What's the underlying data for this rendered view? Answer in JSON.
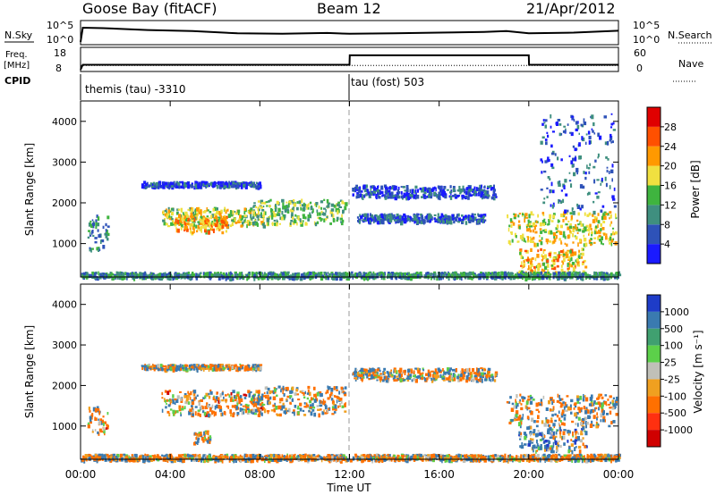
{
  "header": {
    "station": "Goose Bay (fitACF)",
    "beam": "Beam 12",
    "date": "21/Apr/2012"
  },
  "noise_panel": {
    "left_label": "N.Sky",
    "right_label": "N.Search",
    "left_ticks": [
      "10^5",
      "10^0"
    ],
    "right_ticks": [
      "10^5",
      "10^0"
    ]
  },
  "freq_panel": {
    "left_label": "Freq.",
    "left_units": "[MHz]",
    "right_label": "Nave",
    "left_ticks": [
      "18",
      "8"
    ],
    "right_ticks": [
      "60",
      "0"
    ]
  },
  "cpid_panel": {
    "label": "CPID",
    "entries": [
      {
        "text": "themis (tau) -3310",
        "start_hour": 0
      },
      {
        "text": "tau (fost) 503",
        "start_hour": 12
      }
    ]
  },
  "time_axis": {
    "label": "Time UT",
    "ticks": [
      "00:00",
      "04:00",
      "08:00",
      "12:00",
      "16:00",
      "20:00",
      "00:00"
    ]
  },
  "range_axis": {
    "label": "Slant Range [km]",
    "ticks": [
      "1000",
      "2000",
      "3000",
      "4000"
    ]
  },
  "power_scale": {
    "title": "Power [dB]",
    "labels": [
      "4",
      "8",
      "12",
      "16",
      "20",
      "24",
      "28"
    ],
    "colors": [
      "#1a1aff",
      "#2e52b8",
      "#3f8f7f",
      "#3fb43f",
      "#f0e040",
      "#ff9900",
      "#ff5000",
      "#e00000"
    ]
  },
  "velocity_scale": {
    "title": "Velocity [m s⁻¹]",
    "labels": [
      "1000",
      "500",
      "100",
      "25",
      "-25",
      "-100",
      "-500",
      "-1000"
    ],
    "colors": [
      "#1e3cc8",
      "#3a7ab0",
      "#40a070",
      "#5cd04a",
      "#c0c0b8",
      "#f0a020",
      "#ff7000",
      "#ff3010",
      "#d00000"
    ]
  },
  "chart_data": [
    {
      "type": "line",
      "title": "N.Sky",
      "x_range_hours": [
        0,
        24
      ],
      "series": [
        {
          "name": "N.Sky",
          "x": [
            0,
            0.1,
            1,
            3,
            5,
            7,
            9,
            11,
            12,
            14,
            16,
            18,
            19,
            20,
            22,
            24
          ],
          "log10_values": [
            0,
            3.8,
            3.7,
            3.2,
            2.9,
            2.3,
            2.2,
            2.4,
            2.2,
            2.3,
            2.5,
            2.7,
            2.9,
            2.3,
            2.5,
            3.0
          ]
        }
      ]
    },
    {
      "type": "line",
      "title": "Freq. / Nave",
      "x_range_hours": [
        0,
        24
      ],
      "series": [
        {
          "name": "Freq.",
          "x": [
            0,
            0.1,
            12,
            12.01,
            20,
            20.01,
            24
          ],
          "values_mhz": [
            8,
            10.5,
            10.5,
            15.3,
            15.3,
            10.5,
            10.5
          ]
        },
        {
          "name": "Nave",
          "x": [
            0,
            24
          ],
          "values": [
            13,
            13
          ]
        }
      ]
    },
    {
      "type": "heatmap",
      "title": "Power [dB]",
      "xlabel": "Time UT",
      "ylabel": "Slant Range [km]",
      "x_range_hours": [
        0,
        24
      ],
      "y_range_km": [
        180,
        4500
      ],
      "value_range": [
        0,
        30
      ],
      "regions": [
        {
          "t0": 0.3,
          "t1": 1.2,
          "r0": 850,
          "r1": 1750,
          "value": 10
        },
        {
          "t0": 2.7,
          "t1": 8.0,
          "r0": 2420,
          "r1": 2540,
          "value": 5
        },
        {
          "t0": 3.6,
          "t1": 8.2,
          "r0": 1450,
          "r1": 1900,
          "value": 16
        },
        {
          "t0": 4.2,
          "t1": 6.5,
          "r0": 1300,
          "r1": 1700,
          "value": 21
        },
        {
          "t0": 7.5,
          "t1": 11.8,
          "r0": 1500,
          "r1": 2100,
          "value": 14
        },
        {
          "t0": 12.1,
          "t1": 18.5,
          "r0": 2150,
          "r1": 2450,
          "value": 5
        },
        {
          "t0": 12.3,
          "t1": 18.0,
          "r0": 1550,
          "r1": 1750,
          "value": 6
        },
        {
          "t0": 19.0,
          "t1": 23.9,
          "r0": 1000,
          "r1": 1800,
          "value": 18
        },
        {
          "t0": 19.5,
          "t1": 22.5,
          "r0": 300,
          "r1": 900,
          "value": 20
        },
        {
          "t0": 20.5,
          "t1": 23.8,
          "r0": 1800,
          "r1": 4200,
          "value": 6
        },
        {
          "t0": 0.0,
          "t1": 24.0,
          "r0": 180,
          "r1": 320,
          "value": 10
        }
      ]
    },
    {
      "type": "heatmap",
      "title": "Velocity [m s⁻¹]",
      "xlabel": "Time UT",
      "ylabel": "Slant Range [km]",
      "x_range_hours": [
        0,
        24
      ],
      "y_range_km": [
        180,
        4500
      ],
      "value_range": [
        -1000,
        1000
      ],
      "regions": [
        {
          "t0": 0.3,
          "t1": 1.2,
          "r0": 850,
          "r1": 1500,
          "value": -150
        },
        {
          "t0": 2.7,
          "t1": 8.0,
          "r0": 2420,
          "r1": 2540,
          "value": 0
        },
        {
          "t0": 3.6,
          "t1": 8.2,
          "r0": 1300,
          "r1": 1900,
          "value": -120
        },
        {
          "t0": 7.5,
          "t1": 11.8,
          "r0": 1300,
          "r1": 2000,
          "value": 0
        },
        {
          "t0": 5.0,
          "t1": 5.8,
          "r0": 600,
          "r1": 900,
          "value": 0
        },
        {
          "t0": 12.1,
          "t1": 18.5,
          "r0": 2150,
          "r1": 2450,
          "value": 0
        },
        {
          "t0": 19.0,
          "t1": 23.9,
          "r0": 1000,
          "r1": 1800,
          "value": 0
        },
        {
          "t0": 19.5,
          "t1": 22.5,
          "r0": 400,
          "r1": 1000,
          "value": 200
        },
        {
          "t0": 0.0,
          "t1": 24.0,
          "r0": 180,
          "r1": 320,
          "value": -50
        }
      ]
    }
  ]
}
